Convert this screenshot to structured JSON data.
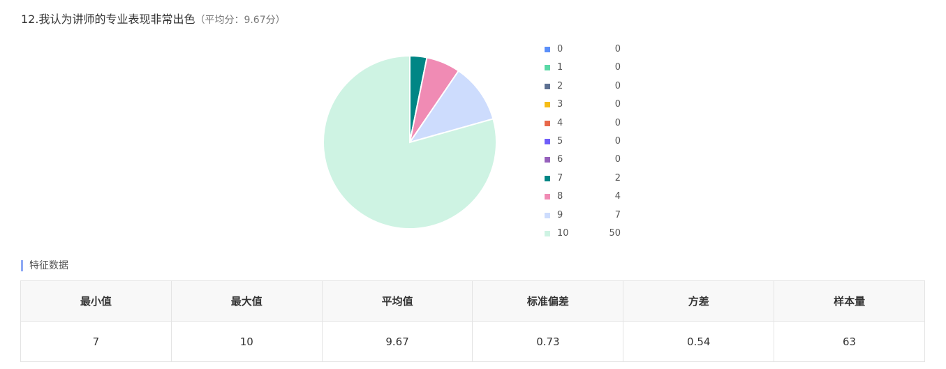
{
  "question": {
    "title": "12.我认为讲师的专业表现非常出色",
    "average_note": "（平均分：9.67分）"
  },
  "chart_data": {
    "type": "pie",
    "categories": [
      "0",
      "1",
      "2",
      "3",
      "4",
      "5",
      "6",
      "7",
      "8",
      "9",
      "10"
    ],
    "values": [
      0,
      0,
      0,
      0,
      0,
      0,
      0,
      2,
      4,
      7,
      50
    ],
    "colors": [
      "#5b8ff9",
      "#5ad8a6",
      "#5d7092",
      "#f6bd16",
      "#e8684a",
      "#6f5ef9",
      "#9661bc",
      "#008685",
      "#f08bb4",
      "#cddcfd",
      "#cef3e3"
    ],
    "start_angle_deg": 0,
    "direction": "clockwise",
    "legend_position": "right"
  },
  "section": {
    "title": "特征数据"
  },
  "stats_table": {
    "headers": [
      "最小值",
      "最大值",
      "平均值",
      "标准偏差",
      "方差",
      "样本量"
    ],
    "values": [
      "7",
      "10",
      "9.67",
      "0.73",
      "0.54",
      "63"
    ]
  }
}
